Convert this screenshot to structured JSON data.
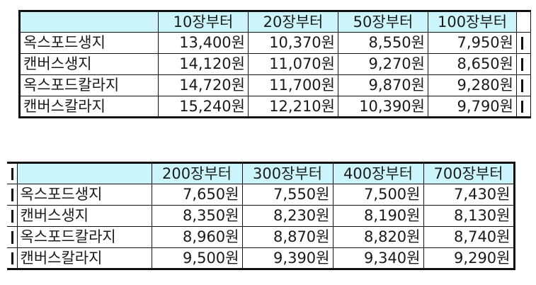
{
  "top_table": {
    "headers": [
      "10장부터",
      "20장부터",
      "50장부터",
      "100장부터"
    ],
    "rows": [
      {
        "name": "옥스포드생지",
        "prices": [
          "13,400원",
          "10,370원",
          "8,550원",
          "7,950원"
        ]
      },
      {
        "name": "캔버스생지",
        "prices": [
          "14,120원",
          "11,070원",
          "9,270원",
          "8,650원"
        ]
      },
      {
        "name": "옥스포드칼라지",
        "prices": [
          "14,720원",
          "11,700원",
          "9,870원",
          "9,280원"
        ]
      },
      {
        "name": "캔버스칼라지",
        "prices": [
          "15,240원",
          "12,210원",
          "10,390원",
          "9,790원"
        ]
      }
    ]
  },
  "bottom_table": {
    "headers": [
      "200장부터",
      "300장부터",
      "400장부터",
      "700장부터"
    ],
    "rows": [
      {
        "name": "옥스포드생지",
        "prices": [
          "7,650원",
          "7,550원",
          "7,500원",
          "7,430원"
        ]
      },
      {
        "name": "캔버스생지",
        "prices": [
          "8,350원",
          "8,230원",
          "8,190원",
          "8,130원"
        ]
      },
      {
        "name": "옥스포드칼라지",
        "prices": [
          "8,960원",
          "8,870원",
          "8,820원",
          "8,740원"
        ]
      },
      {
        "name": "캔버스칼라지",
        "prices": [
          "9,500원",
          "9,390원",
          "9,340원",
          "9,290원"
        ]
      }
    ]
  },
  "colors": {
    "header_bg": "#ccf5fb",
    "border": "#111111"
  }
}
